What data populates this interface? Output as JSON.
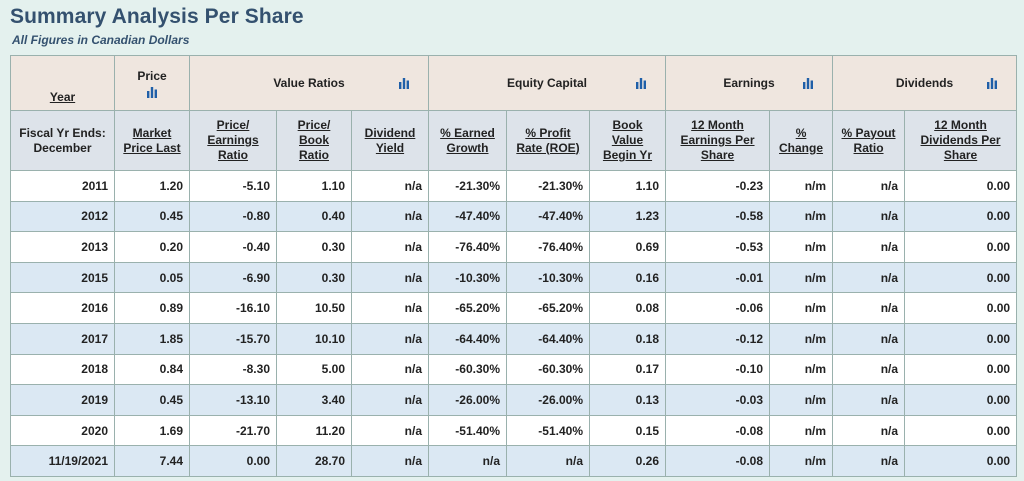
{
  "header": {
    "title": "Summary Analysis Per Share",
    "subtitle": "All Figures in Canadian Dollars"
  },
  "icons": {
    "chart": "bar-chart-icon",
    "color": "#1f5fa8"
  },
  "groups": {
    "year": "Year",
    "price": "Price",
    "value_ratios": "Value Ratios",
    "equity_capital": "Equity Capital",
    "earnings": "Earnings",
    "dividends": "Dividends"
  },
  "columns": {
    "fiscal": [
      "Fiscal Yr Ends:",
      "December"
    ],
    "market_price": [
      "Market",
      "Price Last"
    ],
    "pe_ratio": [
      "Price/",
      "Earnings",
      "Ratio"
    ],
    "pb_ratio": [
      "Price/",
      "Book",
      "Ratio"
    ],
    "div_yield": [
      "Dividend",
      "Yield"
    ],
    "earned_growth": [
      "% Earned",
      "Growth"
    ],
    "profit_rate": [
      "% Profit",
      "Rate (ROE)"
    ],
    "book_value": [
      "Book",
      "Value",
      "Begin Yr"
    ],
    "eps_12m": [
      "12 Month",
      "Earnings Per",
      "Share"
    ],
    "pct_change": [
      "%",
      "Change"
    ],
    "payout_ratio": [
      "% Payout",
      "Ratio"
    ],
    "dps_12m": [
      "12 Month",
      "Dividends Per",
      "Share"
    ]
  },
  "rows": [
    [
      "2011",
      "1.20",
      "-5.10",
      "1.10",
      "n/a",
      "-21.30%",
      "-21.30%",
      "1.10",
      "-0.23",
      "n/m",
      "n/a",
      "0.00"
    ],
    [
      "2012",
      "0.45",
      "-0.80",
      "0.40",
      "n/a",
      "-47.40%",
      "-47.40%",
      "1.23",
      "-0.58",
      "n/m",
      "n/a",
      "0.00"
    ],
    [
      "2013",
      "0.20",
      "-0.40",
      "0.30",
      "n/a",
      "-76.40%",
      "-76.40%",
      "0.69",
      "-0.53",
      "n/m",
      "n/a",
      "0.00"
    ],
    [
      "2015",
      "0.05",
      "-6.90",
      "0.30",
      "n/a",
      "-10.30%",
      "-10.30%",
      "0.16",
      "-0.01",
      "n/m",
      "n/a",
      "0.00"
    ],
    [
      "2016",
      "0.89",
      "-16.10",
      "10.50",
      "n/a",
      "-65.20%",
      "-65.20%",
      "0.08",
      "-0.06",
      "n/m",
      "n/a",
      "0.00"
    ],
    [
      "2017",
      "1.85",
      "-15.70",
      "10.10",
      "n/a",
      "-64.40%",
      "-64.40%",
      "0.18",
      "-0.12",
      "n/m",
      "n/a",
      "0.00"
    ],
    [
      "2018",
      "0.84",
      "-8.30",
      "5.00",
      "n/a",
      "-60.30%",
      "-60.30%",
      "0.17",
      "-0.10",
      "n/m",
      "n/a",
      "0.00"
    ],
    [
      "2019",
      "0.45",
      "-13.10",
      "3.40",
      "n/a",
      "-26.00%",
      "-26.00%",
      "0.13",
      "-0.03",
      "n/m",
      "n/a",
      "0.00"
    ],
    [
      "2020",
      "1.69",
      "-21.70",
      "11.20",
      "n/a",
      "-51.40%",
      "-51.40%",
      "0.15",
      "-0.08",
      "n/m",
      "n/a",
      "0.00"
    ],
    [
      "11/19/2021",
      "7.44",
      "0.00",
      "28.70",
      "n/a",
      "n/a",
      "n/a",
      "0.26",
      "-0.08",
      "n/m",
      "n/a",
      "0.00"
    ]
  ]
}
